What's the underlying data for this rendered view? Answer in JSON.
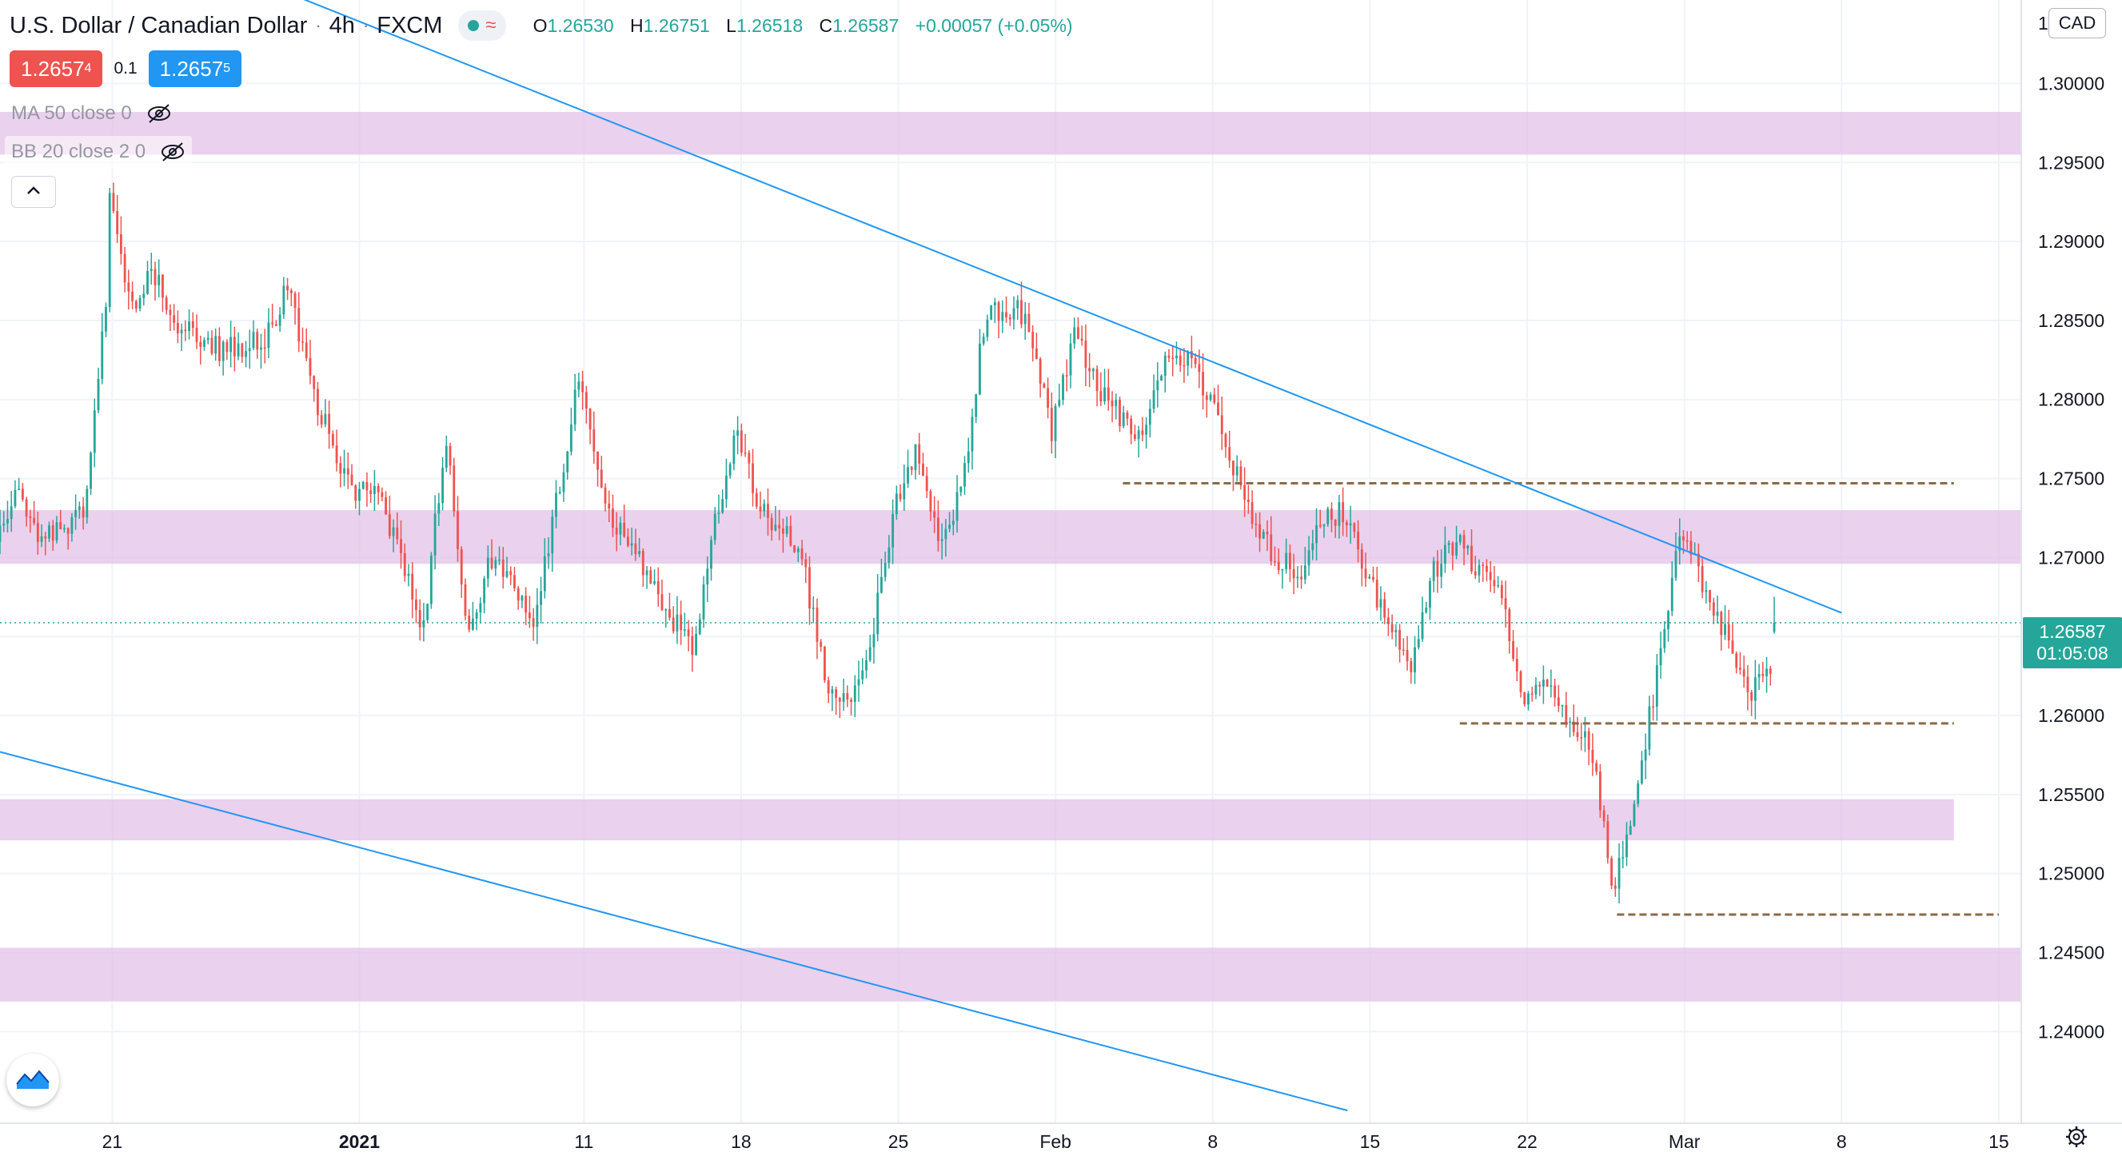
{
  "header": {
    "symbol_name": "U.S. Dollar / Canadian Dollar",
    "separator": "·",
    "interval": "4h",
    "exchange": "FXCM",
    "status_icon": "market-open-dot-icon",
    "wave_icon": "replay-wave-icon",
    "ohlc": {
      "open_label": "O",
      "open": "1.26530",
      "high_label": "H",
      "high": "1.26751",
      "low_label": "L",
      "low": "1.26518",
      "close_label": "C",
      "close": "1.26587",
      "change": "+0.00057 (+0.05%)"
    }
  },
  "trade": {
    "bid_main": "1.2657",
    "bid_pip": "4",
    "spread": "0.1",
    "ask_main": "1.2657",
    "ask_pip": "5"
  },
  "indicators": [
    {
      "label": "MA 50 close 0",
      "icon": "hidden-eye-icon"
    },
    {
      "label": "BB 20 close 2 0",
      "icon": "hidden-eye-icon"
    }
  ],
  "price_scale": {
    "currency": "CAD",
    "ticks": [
      "1.24000",
      "1.24500",
      "1.25000",
      "1.25500",
      "1.26000",
      "1.26500",
      "1.27000",
      "1.27500",
      "1.28000",
      "1.28500",
      "1.29000",
      "1.29500",
      "1.30000"
    ],
    "top_partial": "1",
    "last_price": "1.26587",
    "countdown": "01:05:08"
  },
  "time_scale": {
    "ticks": [
      {
        "label": "21",
        "bold": false
      },
      {
        "label": "2021",
        "bold": true
      },
      {
        "label": "11",
        "bold": false
      },
      {
        "label": "18",
        "bold": false
      },
      {
        "label": "25",
        "bold": false
      },
      {
        "label": "Feb",
        "bold": false
      },
      {
        "label": "8",
        "bold": false
      },
      {
        "label": "15",
        "bold": false
      },
      {
        "label": "22",
        "bold": false
      },
      {
        "label": "Mar",
        "bold": false
      },
      {
        "label": "8",
        "bold": false
      },
      {
        "label": "15",
        "bold": false
      }
    ]
  },
  "colors": {
    "up": "#26a69a",
    "down": "#ef5350",
    "zone": "#e1bee7",
    "trendline": "#2196f3",
    "level": "#8b6a47",
    "grid": "#f0f3fa"
  },
  "chart_data": {
    "type": "candlestick",
    "symbol": "USDCAD",
    "interval": "4h",
    "y_range": [
      1.2345,
      1.3065
    ],
    "x_range": [
      "2020-12-16",
      "2021-03-16"
    ],
    "grid": true,
    "anchor_points": [
      [
        "2020-12-16",
        1.271
      ],
      [
        "2020-12-17",
        1.274
      ],
      [
        "2020-12-18",
        1.271
      ],
      [
        "2020-12-20",
        1.273
      ],
      [
        "2020-12-21",
        1.288
      ],
      [
        "2020-12-21",
        1.293
      ],
      [
        "2020-12-22",
        1.286
      ],
      [
        "2020-12-23",
        1.288
      ],
      [
        "2020-12-24",
        1.285
      ],
      [
        "2020-12-26",
        1.283
      ],
      [
        "2020-12-28",
        1.284
      ],
      [
        "2020-12-29",
        1.287
      ],
      [
        "2020-12-30",
        1.281
      ],
      [
        "2020-12-31",
        1.277
      ],
      [
        "2021-01-01",
        1.274
      ],
      [
        "2021-01-02",
        1.274
      ],
      [
        "2021-01-03",
        1.27
      ],
      [
        "2021-01-04",
        1.265
      ],
      [
        "2021-01-05",
        1.278
      ],
      [
        "2021-01-06",
        1.265
      ],
      [
        "2021-01-07",
        1.27
      ],
      [
        "2021-01-08",
        1.268
      ],
      [
        "2021-01-09",
        1.266
      ],
      [
        "2021-01-10",
        1.274
      ],
      [
        "2021-01-11",
        1.282
      ],
      [
        "2021-01-12",
        1.274
      ],
      [
        "2021-01-13",
        1.271
      ],
      [
        "2021-01-14",
        1.269
      ],
      [
        "2021-01-16",
        1.264
      ],
      [
        "2021-01-17",
        1.272
      ],
      [
        "2021-01-18",
        1.278
      ],
      [
        "2021-01-19",
        1.273
      ],
      [
        "2021-01-20",
        1.272
      ],
      [
        "2021-01-21",
        1.269
      ],
      [
        "2021-01-22",
        1.262
      ],
      [
        "2021-01-23",
        1.261
      ],
      [
        "2021-01-24",
        1.265
      ],
      [
        "2021-01-25",
        1.273
      ],
      [
        "2021-01-26",
        1.277
      ],
      [
        "2021-01-27",
        1.271
      ],
      [
        "2021-01-28",
        1.274
      ],
      [
        "2021-01-29",
        1.285
      ],
      [
        "2021-01-30",
        1.286
      ],
      [
        "2021-01-31",
        1.285
      ],
      [
        "2021-02-01",
        1.278
      ],
      [
        "2021-02-02",
        1.284
      ],
      [
        "2021-02-03",
        1.281
      ],
      [
        "2021-02-04",
        1.279
      ],
      [
        "2021-02-05",
        1.278
      ],
      [
        "2021-02-06",
        1.282
      ],
      [
        "2021-02-07",
        1.283
      ],
      [
        "2021-02-08",
        1.28
      ],
      [
        "2021-02-09",
        1.276
      ],
      [
        "2021-02-10",
        1.272
      ],
      [
        "2021-02-11",
        1.27
      ],
      [
        "2021-02-12",
        1.269
      ],
      [
        "2021-02-13",
        1.272
      ],
      [
        "2021-02-14",
        1.273
      ],
      [
        "2021-02-15",
        1.269
      ],
      [
        "2021-02-16",
        1.266
      ],
      [
        "2021-02-17",
        1.263
      ],
      [
        "2021-02-18",
        1.269
      ],
      [
        "2021-02-19",
        1.271
      ],
      [
        "2021-02-20",
        1.269
      ],
      [
        "2021-02-21",
        1.268
      ],
      [
        "2021-02-22",
        1.261
      ],
      [
        "2021-02-23",
        1.262
      ],
      [
        "2021-02-24",
        1.26
      ],
      [
        "2021-02-25",
        1.258
      ],
      [
        "2021-02-26",
        1.249
      ],
      [
        "2021-02-27",
        1.255
      ],
      [
        "2021-02-28",
        1.263
      ],
      [
        "2021-03-01",
        1.272
      ],
      [
        "2021-03-02",
        1.268
      ],
      [
        "2021-03-03",
        1.265
      ],
      [
        "2021-03-04",
        1.261
      ],
      [
        "2021-03-05",
        1.263
      ],
      [
        "2021-03-05",
        1.2659
      ]
    ],
    "resistance_support_zones": [
      [
        1.2955,
        1.2982
      ],
      [
        1.2696,
        1.273
      ],
      [
        1.2521,
        1.2547
      ],
      [
        1.2419,
        1.2453
      ]
    ],
    "horizontal_levels": [
      1.2747,
      1.2595,
      1.2474
    ],
    "trendlines": [
      {
        "from": [
          "2020-12-16",
          1.313
        ],
        "to": [
          "2021-03-08",
          1.2665
        ]
      },
      {
        "from": [
          "2020-12-16",
          1.2577
        ],
        "to": [
          "2021-02-14",
          1.235
        ]
      }
    ],
    "last": {
      "open": 1.2653,
      "high": 1.26751,
      "low": 1.26518,
      "close": 1.26587
    }
  }
}
